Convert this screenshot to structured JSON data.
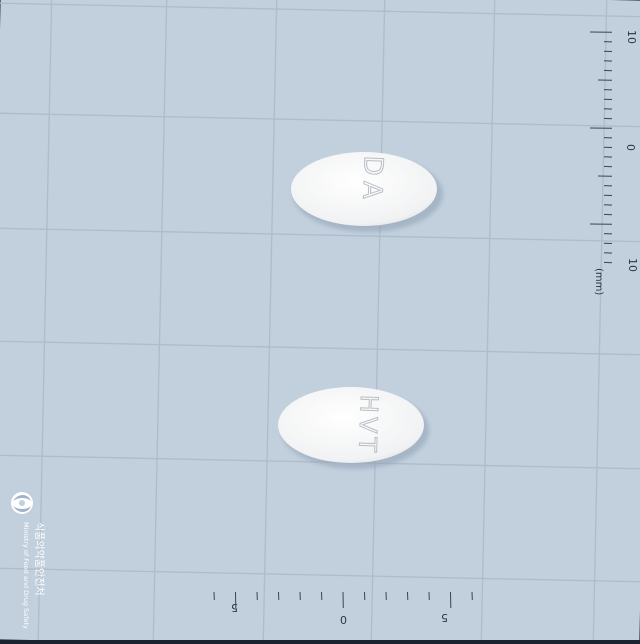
{
  "scene": {
    "background_color": "#c2d0de",
    "grid_color": "#aebdcc",
    "border_color": "#1b2330"
  },
  "ruler_right": {
    "ticks": [
      "10",
      "0",
      "10"
    ],
    "unit": "(mm)"
  },
  "ruler_bottom": {
    "ticks": [
      "5",
      "0",
      "5"
    ]
  },
  "pills": [
    {
      "imprint": "DA",
      "color": "#f4f4f4"
    },
    {
      "imprint": "HVT",
      "color": "#f4f4f4"
    }
  ],
  "logo": {
    "korean": "식품의약품안전처",
    "english": "Ministry of Food and Drug Safety"
  }
}
